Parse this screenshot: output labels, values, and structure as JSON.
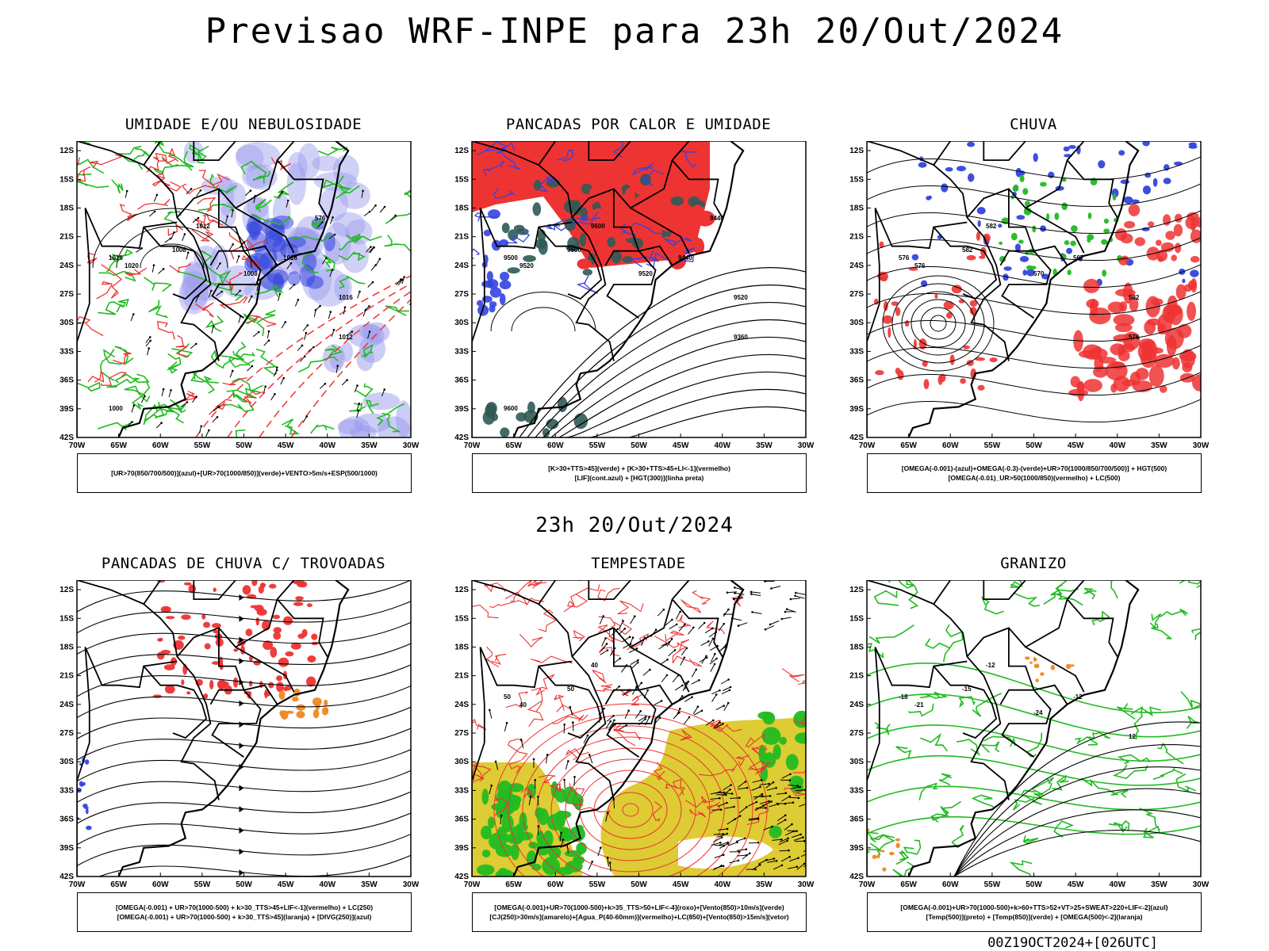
{
  "header": {
    "title": "Previsao WRF-INPE  para 23h 20/Out/2024"
  },
  "middle_date": "23h 20/Out/2024",
  "footer_stamp": "00Z19OCT2024+[026UTC]",
  "axes": {
    "lat_labels": [
      "12S",
      "15S",
      "18S",
      "21S",
      "24S",
      "27S",
      "30S",
      "33S",
      "36S",
      "39S",
      "42S"
    ],
    "lon_labels": [
      "70W",
      "65W",
      "60W",
      "55W",
      "50W",
      "45W",
      "40W",
      "35W",
      "30W"
    ]
  },
  "colors": {
    "blue": "#3344dd",
    "green": "#22bb22",
    "red": "#ee3333",
    "orange": "#ee8822",
    "yellow": "#ddcc33",
    "lavender": "#9999ee",
    "darkteal": "#2f5a55"
  },
  "panels": [
    {
      "id": "umidade",
      "title": "UMIDADE E/OU NEBULOSIDADE",
      "legend": [
        "[UR>70(850/700/500)](azul)+[UR>70(1000/850)](verde)+VENTO>5m/s+ESP(500/1000)"
      ],
      "contour_labels": [
        "1012",
        "1008",
        "1016",
        "1020",
        "1008",
        "1016",
        "1016",
        "1012",
        "1000",
        "576"
      ]
    },
    {
      "id": "pancadas-calor",
      "title": "PANCADAS POR CALOR E UMIDADE",
      "legend": [
        "[K>30+TTS>45](verde)  +  [K>30+TTS>45+LI<-1](vermelho)",
        "[LIF](cont.azul)  +  [HGT(300)](linha preta)"
      ],
      "contour_labels": [
        "9600",
        "9600",
        "9500",
        "9520",
        "9520",
        "9440",
        "9520",
        "9360",
        "9600",
        "9440"
      ]
    },
    {
      "id": "chuva",
      "title": "CHUVA",
      "legend": [
        "[OMEGA(-0.001)-(azul)+OMEGA(-0.3)-(verde)+UR>70(1000/850/700/500)]  +  HGT(500)",
        "[OMEGA(-0.01)_UR>50(1000/850)(vermelho)  +  LC(500)"
      ],
      "contour_labels": [
        "582",
        "582",
        "576",
        "576",
        "570",
        "567",
        "582",
        "576"
      ]
    },
    {
      "id": "trovoadas",
      "title": "PANCADAS DE CHUVA C/ TROVOADAS",
      "legend": [
        "[OMEGA(-0.001)  +  UR>70(1000-500)  +  k>30_TTS>45+LIF<-1](vermelho)  +  LC(250)",
        "[OMEGA(-0.001)  +  UR>70(1000-500)  +  k>30_TTS>45](laranja)  +  [DIVG(250)](azul)"
      ],
      "contour_labels": []
    },
    {
      "id": "tempestade",
      "title": "TEMPESTADE",
      "legend": [
        "[OMEGA(-0.001)+UR>70(1000-500)+k>35_TTS>50+LIF<-4](roxo)+[Vento(850)>10m/s](verde)",
        "[CJ(250)>30m/s](amarelo)+[Agua_P(40-60mm)](vermelho)+LC(850)+[Vento(850)>15m/s](vetor)"
      ],
      "contour_labels": [
        "40",
        "50",
        "50",
        "40"
      ]
    },
    {
      "id": "granizo",
      "title": "GRANIZO",
      "legend": [
        "[OMEGA(-0.001)+UR>70(1000-500)+k>60+TTS>52+VT>25+SWEAT>220+LIF<-2](azul)",
        "[Temp(500)](preto)  +  [Temp(850)](verde)  +  [OMEGA(500)<-2](laranja)"
      ],
      "contour_labels": [
        "-12",
        "-15",
        "-18",
        "-21",
        "-24",
        "-12",
        "12"
      ]
    }
  ]
}
